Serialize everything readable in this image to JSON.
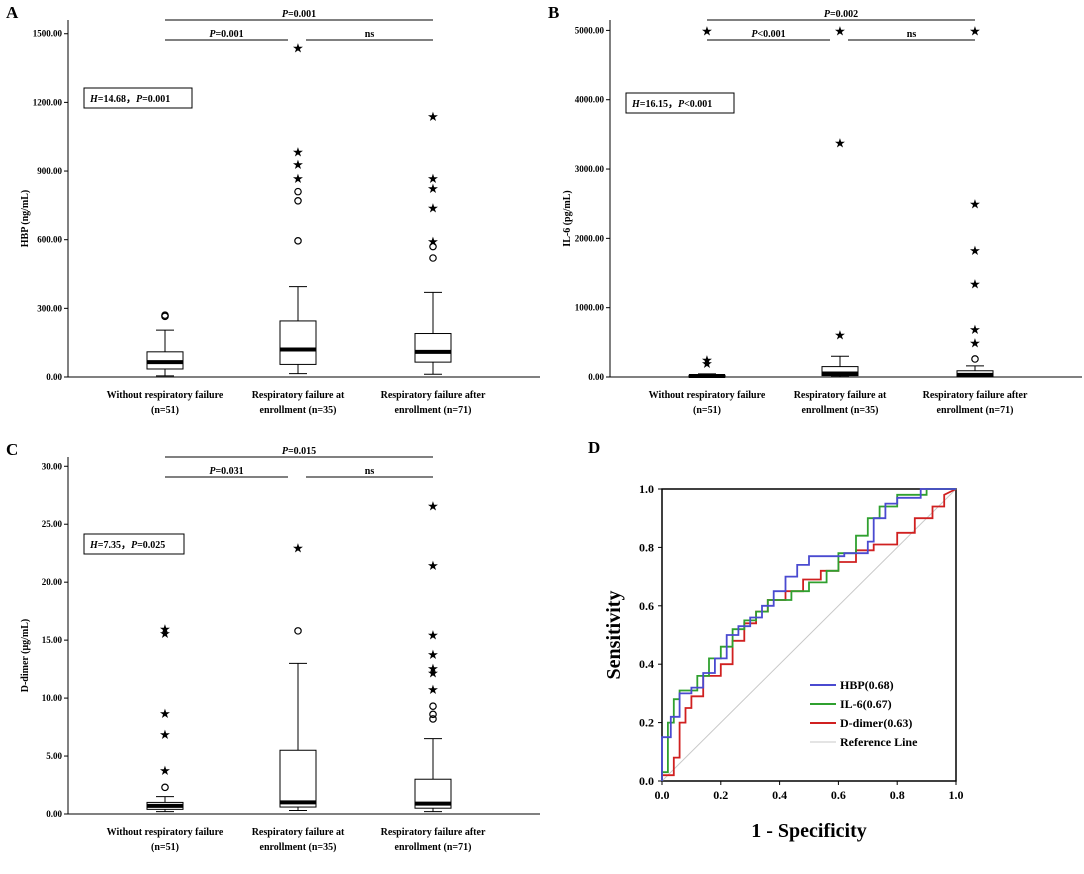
{
  "panels": [
    {
      "id": "A",
      "letter": "A",
      "ylabel": "HBP (ng/mL)",
      "yaxis": {
        "min": 0,
        "max": 1560,
        "ticks": [
          0,
          300,
          600,
          900,
          1200,
          1500
        ],
        "tick_labels": [
          "0.00",
          "300.00",
          "600.00",
          "900.00",
          "1200.00",
          "1500.00"
        ]
      },
      "categories": [
        {
          "line1": "Without  respiratory failure",
          "line2": "(n=51)"
        },
        {
          "line1": "Respiratory failure at",
          "line2": "enrollment (n=35)"
        },
        {
          "line1": "Respiratory failure after",
          "line2": "enrollment (n=71)"
        }
      ],
      "boxes": [
        {
          "wlo": 5,
          "q1": 35,
          "med": 65,
          "q3": 110,
          "whi": 205,
          "outliers": [
            {
              "v": 265,
              "m": "o"
            },
            {
              "v": 270,
              "m": "o"
            }
          ]
        },
        {
          "wlo": 15,
          "q1": 55,
          "med": 120,
          "q3": 245,
          "whi": 395,
          "outliers": [
            {
              "v": 595,
              "m": "o"
            },
            {
              "v": 770,
              "m": "o"
            },
            {
              "v": 810,
              "m": "o"
            },
            {
              "v": 870,
              "m": "*"
            },
            {
              "v": 930,
              "m": "*"
            },
            {
              "v": 985,
              "m": "*"
            },
            {
              "v": 1440,
              "m": "*"
            }
          ]
        },
        {
          "wlo": 12,
          "q1": 65,
          "med": 110,
          "q3": 190,
          "whi": 370,
          "outliers": [
            {
              "v": 520,
              "m": "o"
            },
            {
              "v": 570,
              "m": "o"
            },
            {
              "v": 595,
              "m": "*"
            },
            {
              "v": 740,
              "m": "*"
            },
            {
              "v": 825,
              "m": "*"
            },
            {
              "v": 870,
              "m": "*"
            },
            {
              "v": 1140,
              "m": "*"
            }
          ]
        }
      ],
      "brackets": [
        {
          "from": 0,
          "to": 2,
          "label_prefix": "P",
          "label_rest": "=0.001"
        },
        {
          "from": 0,
          "to": 1,
          "label_prefix": "P",
          "label_rest": "=0.001"
        },
        {
          "from": 1,
          "to": 2,
          "label_prefix": "",
          "label_rest": "ns"
        }
      ],
      "stat": {
        "h_label": "H",
        "h_value": "=14.68，",
        "p_label": "P",
        "p_value": "=0.001"
      }
    },
    {
      "id": "B",
      "letter": "B",
      "ylabel": "IL-6 (pg/mL)",
      "yaxis": {
        "min": 0,
        "max": 5150,
        "ticks": [
          0,
          1000,
          2000,
          3000,
          4000,
          5000
        ],
        "tick_labels": [
          "0.00",
          "1000.00",
          "2000.00",
          "3000.00",
          "4000.00",
          "5000.00"
        ]
      },
      "categories": [
        {
          "line1": "Without respiratory failure",
          "line2": "(n=51)"
        },
        {
          "line1": "Respiratory failure at",
          "line2": "enrollment (n=35)"
        },
        {
          "line1": "Respiratory failure after",
          "line2": "enrollment (n=71)"
        }
      ],
      "boxes": [
        {
          "wlo": 3,
          "q1": 8,
          "med": 15,
          "q3": 25,
          "whi": 45,
          "outliers": [
            {
              "v": 200,
              "m": "*"
            },
            {
              "v": 250,
              "m": "*"
            },
            {
              "v": 5000,
              "m": "*"
            }
          ]
        },
        {
          "wlo": 5,
          "q1": 20,
          "med": 50,
          "q3": 150,
          "whi": 300,
          "outliers": [
            {
              "v": 610,
              "m": "*"
            },
            {
              "v": 3380,
              "m": "*"
            },
            {
              "v": 5000,
              "m": "*"
            }
          ]
        },
        {
          "wlo": 2,
          "q1": 10,
          "med": 30,
          "q3": 90,
          "whi": 160,
          "outliers": [
            {
              "v": 260,
              "m": "o"
            },
            {
              "v": 500,
              "m": "*"
            },
            {
              "v": 690,
              "m": "*"
            },
            {
              "v": 1350,
              "m": "*"
            },
            {
              "v": 1830,
              "m": "*"
            },
            {
              "v": 2500,
              "m": "*"
            },
            {
              "v": 5000,
              "m": "*"
            }
          ]
        }
      ],
      "brackets": [
        {
          "from": 0,
          "to": 2,
          "label_prefix": "P",
          "label_rest": "=0.002"
        },
        {
          "from": 0,
          "to": 1,
          "label_prefix": "P",
          "label_rest": "<0.001"
        },
        {
          "from": 1,
          "to": 2,
          "label_prefix": "",
          "label_rest": "ns"
        }
      ],
      "stat": {
        "h_label": "H",
        "h_value": "=16.15，",
        "p_label": "P",
        "p_value": "<0.001"
      }
    },
    {
      "id": "C",
      "letter": "C",
      "ylabel": "D-dimer (μg/mL)",
      "yaxis": {
        "min": 0,
        "max": 30.8,
        "ticks": [
          0,
          5,
          10,
          15,
          20,
          25,
          30
        ],
        "tick_labels": [
          "0.00",
          "5.00",
          "10.00",
          "15.00",
          "20.00",
          "25.00",
          "30.00"
        ]
      },
      "categories": [
        {
          "line1": "Without respiratory failure",
          "line2": "(n=51)"
        },
        {
          "line1": "Respiratory failure at",
          "line2": "enrollment (n=35)"
        },
        {
          "line1": "Respiratory failure after",
          "line2": "enrollment (n=71)"
        }
      ],
      "boxes": [
        {
          "wlo": 0.2,
          "q1": 0.4,
          "med": 0.7,
          "q3": 1.0,
          "whi": 1.5,
          "outliers": [
            {
              "v": 2.3,
              "m": "o"
            },
            {
              "v": 3.8,
              "m": "*"
            },
            {
              "v": 6.9,
              "m": "*"
            },
            {
              "v": 8.7,
              "m": "*"
            },
            {
              "v": 15.6,
              "m": "*"
            },
            {
              "v": 16.0,
              "m": "*"
            }
          ]
        },
        {
          "wlo": 0.3,
          "q1": 0.6,
          "med": 1.0,
          "q3": 5.5,
          "whi": 13.0,
          "outliers": [
            {
              "v": 15.8,
              "m": "o"
            },
            {
              "v": 23.0,
              "m": "*"
            }
          ]
        },
        {
          "wlo": 0.2,
          "q1": 0.5,
          "med": 0.9,
          "q3": 3.0,
          "whi": 6.5,
          "outliers": [
            {
              "v": 8.2,
              "m": "o"
            },
            {
              "v": 8.6,
              "m": "o"
            },
            {
              "v": 9.3,
              "m": "o"
            },
            {
              "v": 10.8,
              "m": "*"
            },
            {
              "v": 12.2,
              "m": "*"
            },
            {
              "v": 12.6,
              "m": "*"
            },
            {
              "v": 13.8,
              "m": "*"
            },
            {
              "v": 15.5,
              "m": "*"
            },
            {
              "v": 21.5,
              "m": "*"
            },
            {
              "v": 26.6,
              "m": "*"
            }
          ]
        }
      ],
      "brackets": [
        {
          "from": 0,
          "to": 2,
          "label_prefix": "P",
          "label_rest": "=0.015"
        },
        {
          "from": 0,
          "to": 1,
          "label_prefix": "P",
          "label_rest": "=0.031"
        },
        {
          "from": 1,
          "to": 2,
          "label_prefix": "",
          "label_rest": "ns"
        }
      ],
      "stat": {
        "h_label": "H",
        "h_value": "=7.35，",
        "p_label": "P",
        "p_value": "=0.025"
      }
    }
  ],
  "roc": {
    "letter": "D",
    "xlabel": "1 - Specificity",
    "ylabel": "Sensitivity",
    "ticks": [
      0,
      0.2,
      0.4,
      0.6,
      0.8,
      1.0
    ],
    "tick_labels": [
      "0.0",
      "0.2",
      "0.4",
      "0.6",
      "0.8",
      "1.0"
    ]
  },
  "chart_data": [
    {
      "type": "box",
      "title": "A",
      "ylabel": "HBP (ng/mL)",
      "ylim": [
        0,
        1560
      ],
      "categories": [
        "Without respiratory failure (n=51)",
        "Respiratory failure at enrollment (n=35)",
        "Respiratory failure after enrollment (n=71)"
      ],
      "medians": [
        65,
        120,
        110
      ],
      "annotation": "H=14.68, P=0.001"
    },
    {
      "type": "box",
      "title": "B",
      "ylabel": "IL-6 (pg/mL)",
      "ylim": [
        0,
        5150
      ],
      "categories": [
        "Without respiratory failure (n=51)",
        "Respiratory failure at enrollment (n=35)",
        "Respiratory failure after enrollment (n=71)"
      ],
      "medians": [
        15,
        50,
        30
      ],
      "annotation": "H=16.15, P<0.001"
    },
    {
      "type": "box",
      "title": "C",
      "ylabel": "D-dimer (μg/mL)",
      "ylim": [
        0,
        30.8
      ],
      "categories": [
        "Without respiratory failure (n=51)",
        "Respiratory failure at enrollment (n=35)",
        "Respiratory failure after enrollment (n=71)"
      ],
      "medians": [
        0.7,
        1.0,
        0.9
      ],
      "annotation": "H=7.35, P=0.025"
    },
    {
      "type": "line",
      "title": "D",
      "xlabel": "1 - Specificity",
      "ylabel": "Sensitivity",
      "xlim": [
        0,
        1
      ],
      "ylim": [
        0,
        1
      ],
      "legend_position": "bottom-right",
      "series": [
        {
          "name": "HBP(0.68)",
          "color": "#4a4ad0",
          "points": [
            [
              0,
              0
            ],
            [
              0,
              0.15
            ],
            [
              0.03,
              0.15
            ],
            [
              0.03,
              0.22
            ],
            [
              0.06,
              0.22
            ],
            [
              0.06,
              0.3
            ],
            [
              0.1,
              0.3
            ],
            [
              0.1,
              0.32
            ],
            [
              0.14,
              0.32
            ],
            [
              0.14,
              0.37
            ],
            [
              0.18,
              0.37
            ],
            [
              0.18,
              0.42
            ],
            [
              0.22,
              0.42
            ],
            [
              0.22,
              0.5
            ],
            [
              0.26,
              0.5
            ],
            [
              0.26,
              0.53
            ],
            [
              0.3,
              0.53
            ],
            [
              0.3,
              0.56
            ],
            [
              0.34,
              0.56
            ],
            [
              0.34,
              0.6
            ],
            [
              0.38,
              0.6
            ],
            [
              0.38,
              0.65
            ],
            [
              0.42,
              0.65
            ],
            [
              0.42,
              0.7
            ],
            [
              0.46,
              0.7
            ],
            [
              0.46,
              0.74
            ],
            [
              0.5,
              0.74
            ],
            [
              0.5,
              0.77
            ],
            [
              0.62,
              0.77
            ],
            [
              0.62,
              0.78
            ],
            [
              0.7,
              0.78
            ],
            [
              0.7,
              0.82
            ],
            [
              0.72,
              0.82
            ],
            [
              0.72,
              0.9
            ],
            [
              0.76,
              0.9
            ],
            [
              0.76,
              0.95
            ],
            [
              0.8,
              0.95
            ],
            [
              0.8,
              0.97
            ],
            [
              0.88,
              0.97
            ],
            [
              0.88,
              1.0
            ],
            [
              1,
              1
            ]
          ]
        },
        {
          "name": "IL-6(0.67)",
          "color": "#2fa02f",
          "points": [
            [
              0,
              0
            ],
            [
              0,
              0.03
            ],
            [
              0.02,
              0.03
            ],
            [
              0.02,
              0.2
            ],
            [
              0.04,
              0.2
            ],
            [
              0.04,
              0.28
            ],
            [
              0.06,
              0.28
            ],
            [
              0.06,
              0.31
            ],
            [
              0.12,
              0.31
            ],
            [
              0.12,
              0.36
            ],
            [
              0.16,
              0.36
            ],
            [
              0.16,
              0.42
            ],
            [
              0.2,
              0.42
            ],
            [
              0.2,
              0.46
            ],
            [
              0.24,
              0.46
            ],
            [
              0.24,
              0.52
            ],
            [
              0.28,
              0.52
            ],
            [
              0.28,
              0.55
            ],
            [
              0.32,
              0.55
            ],
            [
              0.32,
              0.58
            ],
            [
              0.36,
              0.58
            ],
            [
              0.36,
              0.62
            ],
            [
              0.44,
              0.62
            ],
            [
              0.44,
              0.65
            ],
            [
              0.5,
              0.65
            ],
            [
              0.5,
              0.68
            ],
            [
              0.56,
              0.68
            ],
            [
              0.56,
              0.72
            ],
            [
              0.6,
              0.72
            ],
            [
              0.6,
              0.78
            ],
            [
              0.66,
              0.78
            ],
            [
              0.66,
              0.84
            ],
            [
              0.7,
              0.84
            ],
            [
              0.7,
              0.9
            ],
            [
              0.74,
              0.9
            ],
            [
              0.74,
              0.94
            ],
            [
              0.8,
              0.94
            ],
            [
              0.8,
              0.98
            ],
            [
              0.9,
              0.98
            ],
            [
              0.9,
              1.0
            ],
            [
              1,
              1
            ]
          ]
        },
        {
          "name": "D-dimer(0.63)",
          "color": "#d02020",
          "points": [
            [
              0,
              0
            ],
            [
              0,
              0.02
            ],
            [
              0.04,
              0.02
            ],
            [
              0.04,
              0.08
            ],
            [
              0.06,
              0.08
            ],
            [
              0.06,
              0.2
            ],
            [
              0.08,
              0.2
            ],
            [
              0.08,
              0.25
            ],
            [
              0.1,
              0.25
            ],
            [
              0.1,
              0.29
            ],
            [
              0.14,
              0.29
            ],
            [
              0.14,
              0.36
            ],
            [
              0.2,
              0.36
            ],
            [
              0.2,
              0.4
            ],
            [
              0.24,
              0.4
            ],
            [
              0.24,
              0.48
            ],
            [
              0.28,
              0.48
            ],
            [
              0.28,
              0.54
            ],
            [
              0.32,
              0.54
            ],
            [
              0.32,
              0.58
            ],
            [
              0.36,
              0.58
            ],
            [
              0.36,
              0.62
            ],
            [
              0.42,
              0.62
            ],
            [
              0.42,
              0.65
            ],
            [
              0.48,
              0.65
            ],
            [
              0.48,
              0.69
            ],
            [
              0.54,
              0.69
            ],
            [
              0.54,
              0.72
            ],
            [
              0.6,
              0.72
            ],
            [
              0.6,
              0.75
            ],
            [
              0.66,
              0.75
            ],
            [
              0.66,
              0.79
            ],
            [
              0.72,
              0.79
            ],
            [
              0.72,
              0.81
            ],
            [
              0.8,
              0.81
            ],
            [
              0.8,
              0.85
            ],
            [
              0.86,
              0.85
            ],
            [
              0.86,
              0.9
            ],
            [
              0.92,
              0.9
            ],
            [
              0.92,
              0.94
            ],
            [
              0.96,
              0.94
            ],
            [
              0.96,
              0.98
            ],
            [
              1,
              1.0
            ]
          ]
        },
        {
          "name": "Reference Line",
          "color": "#c8c8c8",
          "points": [
            [
              0,
              0
            ],
            [
              1,
              1
            ]
          ]
        }
      ]
    }
  ]
}
